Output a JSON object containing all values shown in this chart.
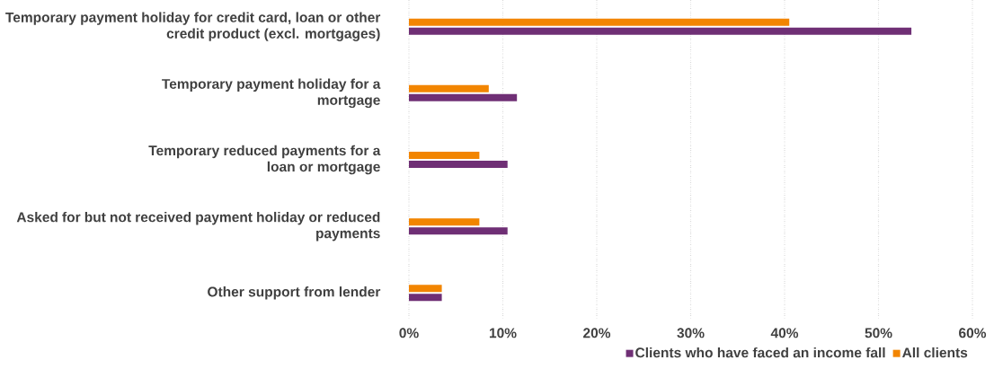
{
  "chart_data": {
    "type": "bar",
    "orientation": "horizontal",
    "categories": [
      "Temporary payment holiday for credit card, loan or other credit product (excl. mortgages)",
      "Temporary payment holiday for a mortgage",
      "Temporary reduced payments for a loan or mortgage",
      "Asked for but not received payment holiday or reduced payments",
      "Other support from lender"
    ],
    "series": [
      {
        "name": "Clients who have faced an income fall",
        "color": "#6f2f75",
        "values": [
          53.5,
          11.5,
          10.5,
          10.5,
          3.5
        ]
      },
      {
        "name": "All clients",
        "color": "#f28500",
        "values": [
          40.5,
          8.5,
          7.5,
          7.5,
          3.5
        ]
      }
    ],
    "xlim": [
      0,
      60
    ],
    "xticks": [
      {
        "value": 0,
        "label": "0%"
      },
      {
        "value": 10,
        "label": "10%"
      },
      {
        "value": 20,
        "label": "20%"
      },
      {
        "value": 30,
        "label": "30%"
      },
      {
        "value": 40,
        "label": "40%"
      },
      {
        "value": 50,
        "label": "50%"
      },
      {
        "value": 60,
        "label": "60%"
      }
    ],
    "grid": "x",
    "legend": "bottom right"
  }
}
